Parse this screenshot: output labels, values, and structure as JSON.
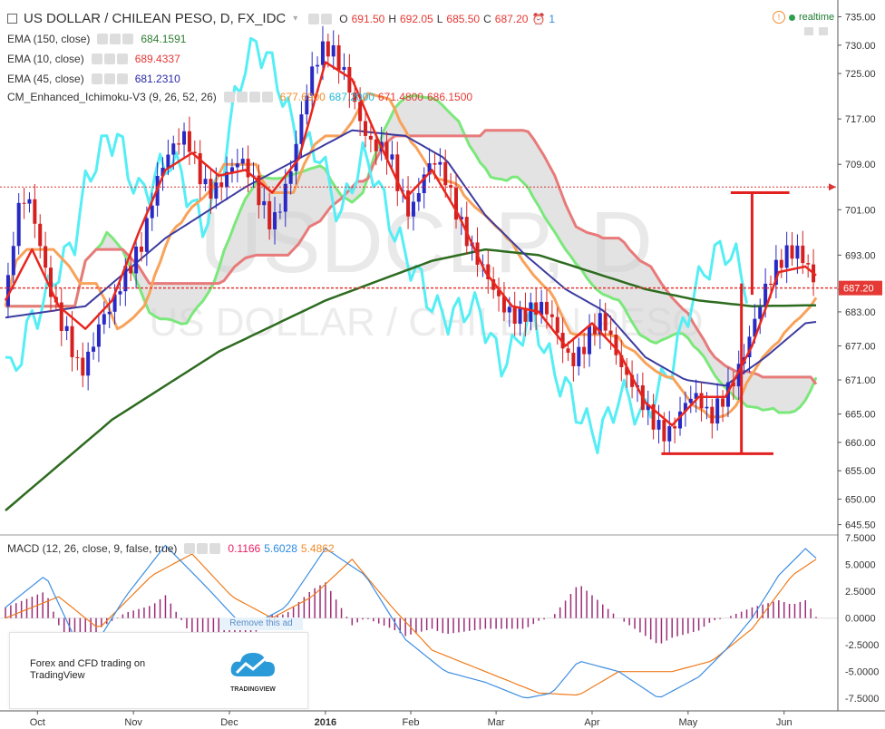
{
  "header": {
    "symbol_title": "US DOLLAR / CHILEAN PESO, D, FX_IDC",
    "o_label": "O",
    "o_value": "691.50",
    "h_label": "H",
    "h_value": "692.05",
    "l_label": "L",
    "l_value": "685.50",
    "c_label": "C",
    "c_value": "687.20",
    "alert_count": "1",
    "realtime_label": "realtime"
  },
  "legend": {
    "ema150_label": "EMA (150, close)",
    "ema150_value": "684.1591",
    "ema10_label": "EMA (10, close)",
    "ema10_value": "689.4337",
    "ema45_label": "EMA (45, close)",
    "ema45_value": "681.2310",
    "ichimoku_label": "CM_Enhanced_Ichimoku-V3 (9, 26, 52, 26)",
    "ich_v1": "677.6900",
    "ich_v2": "687.2000",
    "ich_v3": "671.4800",
    "ich_v4": "686.1500"
  },
  "macd_legend": {
    "label": "MACD (12, 26, close, 9, false, true)",
    "v1": "0.1166",
    "v2": "5.6028",
    "v3": "5.4862"
  },
  "watermark": {
    "line1": "USDCLP, D",
    "line2": "US DOLLAR / CHILEAN PESO"
  },
  "ad": {
    "text": "Forex and CFD trading on TradingView",
    "logo_text": "TRADINGVIEW",
    "remove_label": "Remove this ad"
  },
  "colors": {
    "up_candle": "#2929c4",
    "down_candle": "#d42020",
    "ema150": "#2d6b1f",
    "ema10": "#e8261d",
    "ema45": "#3c3ca0",
    "tenkan": "#55eef5",
    "kijun": "#f8a25a",
    "span_a": "#7be87b",
    "span_b": "#e87a7a",
    "cloud": "#d0d0d0",
    "macd": "#3d8ee0",
    "signal": "#f07a1a",
    "hist": "#9c2d78",
    "price_label_bg": "#e53935"
  },
  "chart_data": [
    {
      "type": "candlestick",
      "title": "US DOLLAR / CHILEAN PESO, D, FX_IDC",
      "x_ticks": [
        "Oct",
        "Nov",
        "Dec",
        "2016",
        "Feb",
        "Mar",
        "Apr",
        "May",
        "Jun"
      ],
      "y_ticks": [
        "735.00",
        "730.00",
        "725.00",
        "717.00",
        "709.00",
        "701.00",
        "693.00",
        "687.00",
        "683.00",
        "677.00",
        "671.00",
        "665.00",
        "660.00",
        "655.00",
        "650.00",
        "645.50"
      ],
      "ylim": [
        644,
        737
      ],
      "last_price": 687.2,
      "last_price_label": "687.20",
      "resistance_level": 705,
      "price_path": [
        [
          0,
          684
        ],
        [
          4,
          700
        ],
        [
          8,
          704
        ],
        [
          12,
          697
        ],
        [
          16,
          688
        ],
        [
          20,
          682
        ],
        [
          24,
          678
        ],
        [
          28,
          672
        ],
        [
          32,
          676
        ],
        [
          36,
          682
        ],
        [
          40,
          684
        ],
        [
          44,
          689
        ],
        [
          48,
          692
        ],
        [
          52,
          696
        ],
        [
          56,
          705
        ],
        [
          60,
          710
        ],
        [
          64,
          713
        ],
        [
          68,
          714
        ],
        [
          72,
          708
        ],
        [
          76,
          704
        ],
        [
          80,
          705
        ],
        [
          84,
          708
        ],
        [
          88,
          710
        ],
        [
          92,
          707
        ],
        [
          96,
          702
        ],
        [
          100,
          698
        ],
        [
          104,
          703
        ],
        [
          108,
          710
        ],
        [
          112,
          720
        ],
        [
          116,
          727
        ],
        [
          120,
          730
        ],
        [
          124,
          728
        ],
        [
          128,
          724
        ],
        [
          132,
          718
        ],
        [
          136,
          713
        ],
        [
          140,
          712
        ],
        [
          144,
          711
        ],
        [
          148,
          704
        ],
        [
          152,
          700
        ],
        [
          156,
          706
        ],
        [
          160,
          710
        ],
        [
          164,
          708
        ],
        [
          168,
          702
        ],
        [
          172,
          697
        ],
        [
          176,
          693
        ],
        [
          180,
          690
        ],
        [
          184,
          686
        ],
        [
          188,
          683
        ],
        [
          192,
          682
        ],
        [
          196,
          683
        ],
        [
          200,
          684
        ],
        [
          204,
          683
        ],
        [
          208,
          678
        ],
        [
          212,
          674
        ],
        [
          216,
          676
        ],
        [
          220,
          680
        ],
        [
          224,
          682
        ],
        [
          228,
          677
        ],
        [
          232,
          672
        ],
        [
          236,
          670
        ],
        [
          240,
          666
        ],
        [
          244,
          663
        ],
        [
          248,
          661
        ],
        [
          252,
          664
        ],
        [
          256,
          668
        ],
        [
          260,
          668
        ],
        [
          264,
          664
        ],
        [
          268,
          667
        ],
        [
          272,
          670
        ],
        [
          276,
          674
        ],
        [
          280,
          680
        ],
        [
          284,
          686
        ],
        [
          288,
          690
        ],
        [
          292,
          693
        ],
        [
          296,
          694
        ],
        [
          300,
          692
        ],
        [
          304,
          687.2
        ]
      ],
      "ema150": [
        [
          0,
          648
        ],
        [
          40,
          664
        ],
        [
          80,
          676
        ],
        [
          120,
          685
        ],
        [
          160,
          692
        ],
        [
          180,
          694
        ],
        [
          200,
          693
        ],
        [
          220,
          690
        ],
        [
          240,
          687
        ],
        [
          260,
          685
        ],
        [
          280,
          684
        ],
        [
          304,
          684.16
        ]
      ],
      "ema10": [
        [
          0,
          685
        ],
        [
          10,
          694
        ],
        [
          20,
          684
        ],
        [
          30,
          680
        ],
        [
          40,
          685
        ],
        [
          50,
          697
        ],
        [
          60,
          708
        ],
        [
          70,
          711
        ],
        [
          80,
          707
        ],
        [
          90,
          708
        ],
        [
          100,
          704
        ],
        [
          110,
          710
        ],
        [
          120,
          727
        ],
        [
          130,
          724
        ],
        [
          140,
          713
        ],
        [
          150,
          703
        ],
        [
          160,
          708
        ],
        [
          170,
          700
        ],
        [
          180,
          690
        ],
        [
          190,
          684
        ],
        [
          200,
          683
        ],
        [
          210,
          677
        ],
        [
          220,
          681
        ],
        [
          230,
          676
        ],
        [
          240,
          667
        ],
        [
          250,
          663
        ],
        [
          260,
          668
        ],
        [
          270,
          668
        ],
        [
          280,
          677
        ],
        [
          290,
          690
        ],
        [
          300,
          691
        ],
        [
          304,
          689.43
        ]
      ],
      "ema45": [
        [
          0,
          682
        ],
        [
          30,
          684
        ],
        [
          60,
          696
        ],
        [
          90,
          705
        ],
        [
          110,
          710
        ],
        [
          130,
          715
        ],
        [
          150,
          714
        ],
        [
          165,
          710
        ],
        [
          180,
          700
        ],
        [
          195,
          693
        ],
        [
          210,
          687
        ],
        [
          225,
          683
        ],
        [
          240,
          675
        ],
        [
          255,
          671
        ],
        [
          270,
          670
        ],
        [
          285,
          675
        ],
        [
          300,
          681
        ],
        [
          304,
          681.23
        ]
      ],
      "macd": [
        [
          0,
          1
        ],
        [
          15,
          4
        ],
        [
          30,
          -4
        ],
        [
          45,
          2
        ],
        [
          60,
          6.8
        ],
        [
          75,
          3
        ],
        [
          90,
          -1
        ],
        [
          105,
          1
        ],
        [
          120,
          6.5
        ],
        [
          135,
          4
        ],
        [
          150,
          -2
        ],
        [
          165,
          -5
        ],
        [
          180,
          -6
        ],
        [
          195,
          -7.5
        ],
        [
          205,
          -7
        ],
        [
          215,
          -4
        ],
        [
          230,
          -5
        ],
        [
          245,
          -7.5
        ],
        [
          260,
          -5.5
        ],
        [
          270,
          -3
        ],
        [
          280,
          0
        ],
        [
          290,
          4
        ],
        [
          300,
          6.5
        ],
        [
          304,
          5.6
        ]
      ],
      "signal": [
        [
          0,
          0
        ],
        [
          20,
          2
        ],
        [
          35,
          -1
        ],
        [
          55,
          4
        ],
        [
          70,
          6
        ],
        [
          85,
          2
        ],
        [
          100,
          0
        ],
        [
          115,
          2
        ],
        [
          130,
          5.5
        ],
        [
          145,
          1
        ],
        [
          160,
          -3
        ],
        [
          180,
          -5
        ],
        [
          200,
          -7
        ],
        [
          215,
          -7.2
        ],
        [
          230,
          -5
        ],
        [
          250,
          -5
        ],
        [
          265,
          -4
        ],
        [
          280,
          -1
        ],
        [
          295,
          4
        ],
        [
          304,
          5.49
        ]
      ],
      "macd_ylim": [
        -8.5,
        7.6
      ],
      "macd_y_ticks": [
        "7.5000",
        "5.0000",
        "2.5000",
        "0.0000",
        "-2.5000",
        "-5.0000",
        "-7.5000"
      ]
    }
  ]
}
